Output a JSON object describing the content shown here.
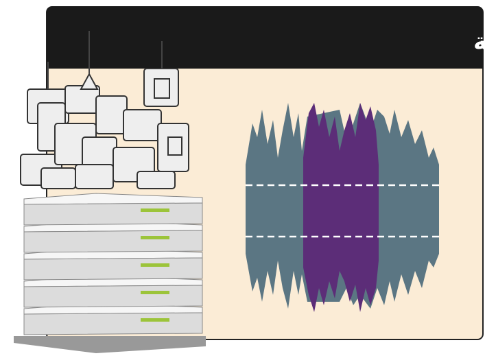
{
  "title": "بيانات صوتية"
}
